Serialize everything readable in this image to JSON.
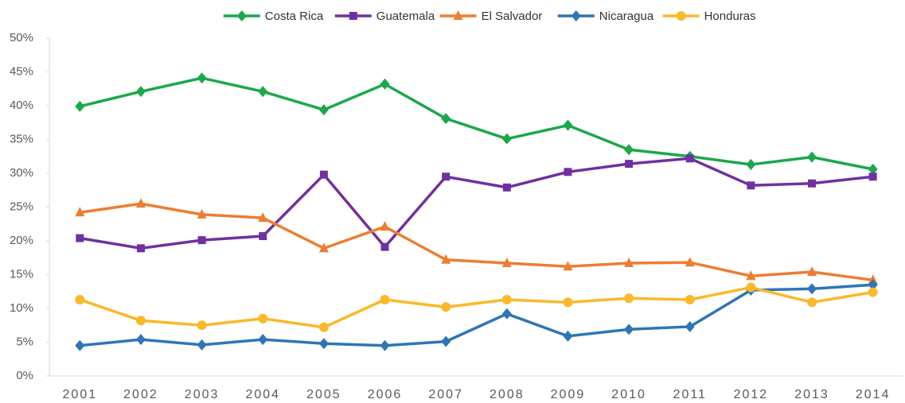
{
  "chart_data": {
    "type": "line",
    "categories": [
      "2001",
      "2002",
      "2003",
      "2004",
      "2005",
      "2006",
      "2007",
      "2008",
      "2009",
      "2010",
      "2011",
      "2012",
      "2013",
      "2014"
    ],
    "series": [
      {
        "name": "Costa Rica",
        "color": "#1aa84b",
        "marker": "diamond",
        "values": [
          39.9,
          42.1,
          44.1,
          42.1,
          39.4,
          43.2,
          38.1,
          35.1,
          37.1,
          33.5,
          32.5,
          31.3,
          32.4,
          30.6
        ]
      },
      {
        "name": "Guatemala",
        "color": "#7030a0",
        "marker": "square",
        "values": [
          20.4,
          18.9,
          20.1,
          20.7,
          29.8,
          19.1,
          29.5,
          27.9,
          30.2,
          31.4,
          32.2,
          28.2,
          28.5,
          29.5
        ]
      },
      {
        "name": "El Salvador",
        "color": "#ed7d31",
        "marker": "triangle",
        "values": [
          24.2,
          25.5,
          23.9,
          23.4,
          18.9,
          22.1,
          17.2,
          16.7,
          16.2,
          16.7,
          16.8,
          14.8,
          15.4,
          14.2
        ]
      },
      {
        "name": "Nicaragua",
        "color": "#2e75b6",
        "marker": "diamond",
        "values": [
          4.5,
          5.4,
          4.6,
          5.4,
          4.8,
          4.5,
          5.1,
          9.2,
          5.9,
          6.9,
          7.3,
          12.7,
          12.9,
          13.5
        ]
      },
      {
        "name": "Honduras",
        "color": "#fbb829",
        "marker": "circle",
        "values": [
          11.3,
          8.2,
          7.5,
          8.5,
          7.2,
          11.3,
          10.2,
          11.3,
          10.9,
          11.5,
          11.3,
          13.1,
          10.9,
          12.4
        ]
      }
    ],
    "ylim": [
      0,
      50
    ],
    "yticks": [
      {
        "value": 0,
        "label": "0%"
      },
      {
        "value": 5,
        "label": "5%"
      },
      {
        "value": 10,
        "label": "10%"
      },
      {
        "value": 15,
        "label": "15%"
      },
      {
        "value": 20,
        "label": "20%"
      },
      {
        "value": 25,
        "label": "25%"
      },
      {
        "value": 30,
        "label": "30%"
      },
      {
        "value": 35,
        "label": "35%"
      },
      {
        "value": 40,
        "label": "40%"
      },
      {
        "value": 45,
        "label": "45%"
      },
      {
        "value": 50,
        "label": "50%"
      }
    ],
    "grid": false,
    "legend": "top"
  }
}
